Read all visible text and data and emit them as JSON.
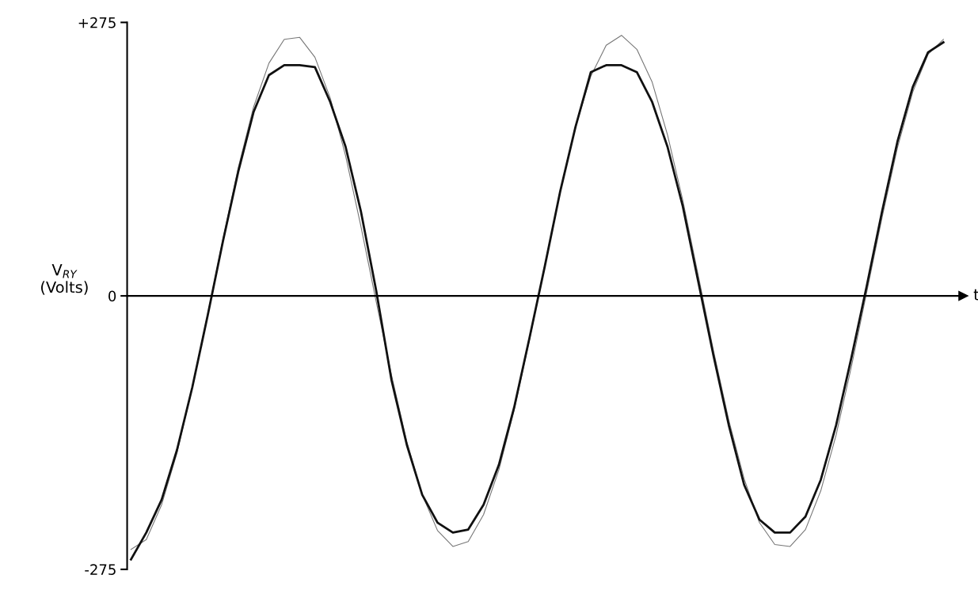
{
  "chart_data": {
    "type": "line",
    "xlabel": "t",
    "ylabel": "V$_{RY}$\n(Volts)",
    "categories": [
      null,
      null,
      null,
      null,
      null,
      null,
      null,
      null,
      null,
      null,
      null,
      null,
      null,
      null,
      null,
      null,
      null,
      null,
      null,
      null,
      null,
      null,
      null,
      null,
      null,
      null,
      null,
      null,
      null,
      null,
      null,
      null,
      null,
      null,
      null,
      null,
      null,
      null,
      null,
      null,
      null,
      null,
      null,
      null,
      null,
      null,
      null,
      null,
      null,
      null,
      null,
      null,
      null,
      null
    ],
    "series": [
      {
        "color": "#777777",
        "values": [
          -255,
          -245,
          -210,
          -158,
          -92,
          -19,
          57,
          129,
          190,
          234,
          258,
          260,
          240,
          199,
          141,
          70,
          -6,
          -80,
          -147,
          -200,
          -236,
          -252,
          -247,
          -220,
          -175,
          -115,
          -44,
          31,
          105,
          170,
          221,
          252,
          262,
          248,
          215,
          162,
          96,
          21,
          -55,
          -125,
          -184,
          -228,
          -250,
          -252,
          -235,
          -196,
          -140,
          -71,
          4,
          79,
          149,
          205,
          243,
          258
        ]
      },
      {
        "color": "#111111",
        "values": [
          -265,
          -238,
          -205,
          -155,
          -92,
          -20,
          55,
          125,
          185,
          222,
          232,
          232,
          230,
          195,
          150,
          85,
          5,
          -85,
          -150,
          -200,
          -228,
          -238,
          -235,
          -210,
          -170,
          -112,
          -42,
          30,
          105,
          170,
          225,
          232,
          232,
          225,
          195,
          150,
          90,
          15,
          -60,
          -130,
          -190,
          -225,
          -238,
          -238,
          -222,
          -185,
          -130,
          -62,
          10,
          85,
          155,
          210,
          245,
          255
        ]
      }
    ],
    "ylim": [
      -275,
      275
    ],
    "yticks": [
      {
        "value": 275,
        "label": "+275"
      },
      0,
      -275
    ],
    "tick_labels": "y",
    "ref_lines": [
      {
        "axis": "y",
        "value": 0,
        "color": "#000000"
      }
    ]
  }
}
